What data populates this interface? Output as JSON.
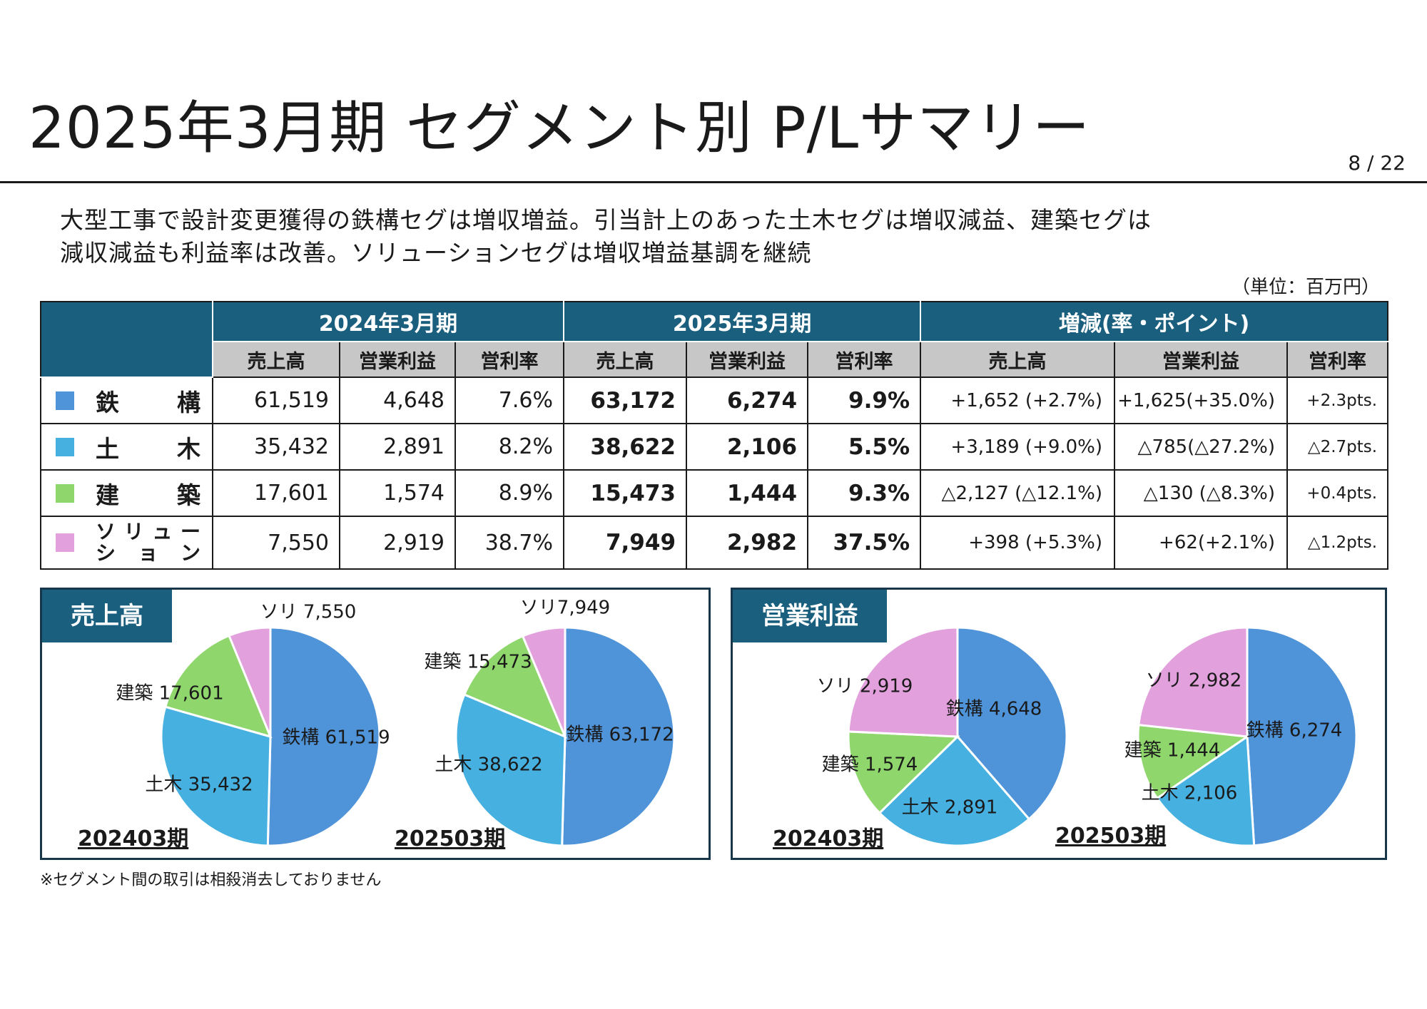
{
  "title": "2025年3月期 セグメント別 P/Lサマリー",
  "page": "8 / 22",
  "subtitle": {
    "line1": "大型工事で設計変更獲得の鉄構セグは増収増益。引当計上のあった土木セグは増収減益、建築セグは",
    "line2": "減収減益も利益率は改善。ソリューションセグは増収増益基調を継続"
  },
  "unit": "（単位：百万円）",
  "table": {
    "groups": [
      "2024年3月期",
      "2025年3月期",
      "増減(率・ポイント)"
    ],
    "columns": [
      "売上高",
      "営業利益",
      "営利率",
      "売上高",
      "営業利益",
      "営利率",
      "売上高",
      "営業利益",
      "営利率"
    ],
    "rows": [
      {
        "segment": "鉄　　構",
        "chars": [
          "鉄",
          "構"
        ],
        "color": "#4f93d9",
        "cells": [
          "61,519",
          "4,648",
          "7.6%",
          "63,172",
          "6,274",
          "9.9%",
          "+1,652 (+2.7%)",
          "+1,625(+35.0%)",
          "+2.3pts."
        ]
      },
      {
        "segment": "土　　木",
        "chars": [
          "土",
          "木"
        ],
        "color": "#46b0e0",
        "cells": [
          "35,432",
          "2,891",
          "8.2%",
          "38,622",
          "2,106",
          "5.5%",
          "+3,189 (+9.0%)",
          "△785(△27.2%)",
          "△2.7pts."
        ]
      },
      {
        "segment": "建　　築",
        "chars": [
          "建",
          "築"
        ],
        "color": "#8fd66c",
        "cells": [
          "17,601",
          "1,574",
          "8.9%",
          "15,473",
          "1,444",
          "9.3%",
          "△2,127 (△12.1%)",
          "△130 (△8.3%)",
          "+0.4pts."
        ]
      },
      {
        "segment": "ソリュー ション",
        "line1": [
          "ソ",
          "リ",
          "ュ",
          "ー"
        ],
        "line2": [
          "シ",
          "ョ",
          "ン"
        ],
        "color": "#e2a0dc",
        "cells": [
          "7,550",
          "2,919",
          "38.7%",
          "7,949",
          "2,982",
          "37.5%",
          "+398 (+5.3%)",
          "+62(+2.1%)",
          "△1.2pts."
        ]
      }
    ]
  },
  "panels": {
    "sales_title": "売上高",
    "profit_title": "営業利益"
  },
  "footnote": "※セグメント間の取引は相殺消去しておりません",
  "chart_data": [
    {
      "type": "pie",
      "group": "売上高",
      "period": "202403期",
      "categories": [
        "鉄構",
        "土木",
        "建築",
        "ソリ"
      ],
      "values": [
        61519,
        35432,
        17601,
        7550
      ],
      "labels": [
        "鉄構 61,519",
        "土木 35,432",
        "建築 17,601",
        "ソリ 7,550"
      ],
      "colors": [
        "#4f93d9",
        "#46b0e0",
        "#8fd66c",
        "#e2a0dc"
      ]
    },
    {
      "type": "pie",
      "group": "売上高",
      "period": "202503期",
      "categories": [
        "鉄構",
        "土木",
        "建築",
        "ソリ"
      ],
      "values": [
        63172,
        38622,
        15473,
        7949
      ],
      "labels": [
        "鉄構 63,172",
        "土木 38,622",
        "建築 15,473",
        "ソリ7,949"
      ],
      "colors": [
        "#4f93d9",
        "#46b0e0",
        "#8fd66c",
        "#e2a0dc"
      ]
    },
    {
      "type": "pie",
      "group": "営業利益",
      "period": "202403期",
      "categories": [
        "鉄構",
        "土木",
        "建築",
        "ソリ"
      ],
      "values": [
        4648,
        2891,
        1574,
        2919
      ],
      "labels": [
        "鉄構 4,648",
        "土木 2,891",
        "建築 1,574",
        "ソリ 2,919"
      ],
      "colors": [
        "#4f93d9",
        "#46b0e0",
        "#8fd66c",
        "#e2a0dc"
      ]
    },
    {
      "type": "pie",
      "group": "営業利益",
      "period": "202503期",
      "categories": [
        "鉄構",
        "土木",
        "建築",
        "ソリ"
      ],
      "values": [
        6274,
        2106,
        1444,
        2982
      ],
      "labels": [
        "鉄構 6,274",
        "土木 2,106",
        "建築 1,444",
        "ソリ 2,982"
      ],
      "colors": [
        "#4f93d9",
        "#46b0e0",
        "#8fd66c",
        "#e2a0dc"
      ]
    }
  ]
}
